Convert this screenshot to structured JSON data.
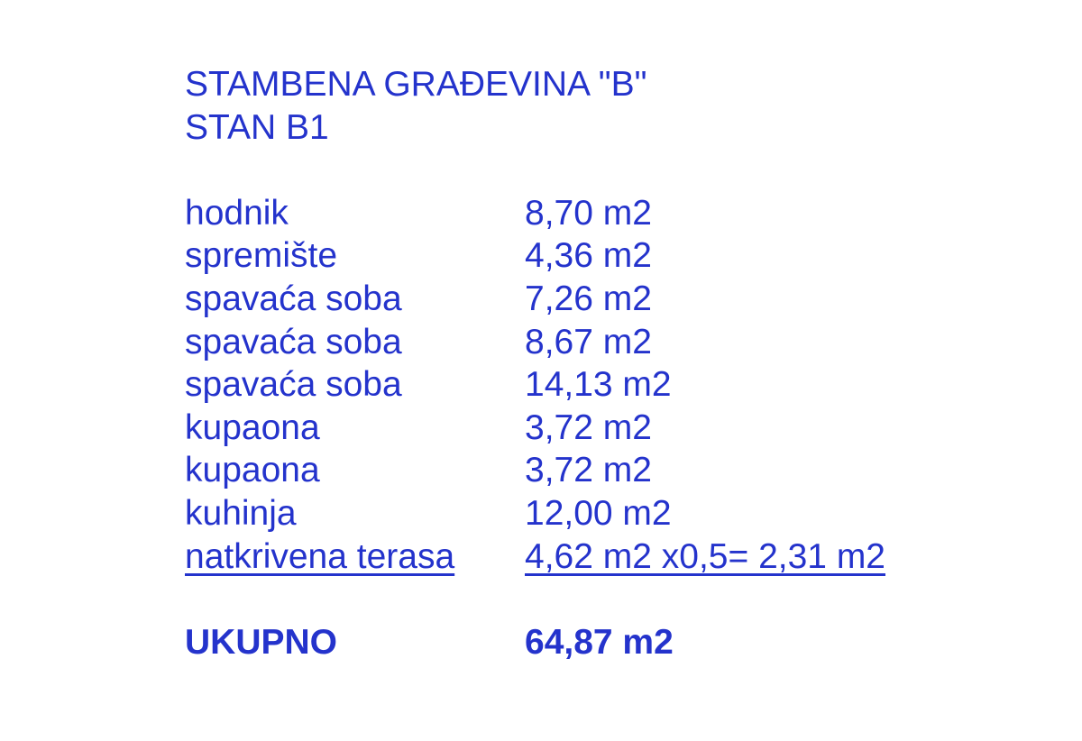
{
  "colors": {
    "text": "#2433cc",
    "background": "#ffffff"
  },
  "header": {
    "title_line1": "STAMBENA GRAĐEVINA \"B\"",
    "title_line2": "STAN B1"
  },
  "rooms": [
    {
      "label": "hodnik",
      "area": "8,70 m2"
    },
    {
      "label": "spremište",
      "area": "4,36 m2"
    },
    {
      "label": "spavaća soba",
      "area": "7,26 m2"
    },
    {
      "label": "spavaća soba",
      "area": "8,67 m2"
    },
    {
      "label": "spavaća soba",
      "area": "14,13 m2"
    },
    {
      "label": "kupaona",
      "area": "3,72 m2"
    },
    {
      "label": "kupaona",
      "area": "3,72 m2"
    },
    {
      "label": "kuhinja",
      "area": "12,00 m2"
    },
    {
      "label": "natkrivena terasa",
      "area": "4,62 m2 x0,5= 2,31 m2"
    }
  ],
  "total": {
    "label": "UKUPNO",
    "area": "64,87 m2"
  }
}
